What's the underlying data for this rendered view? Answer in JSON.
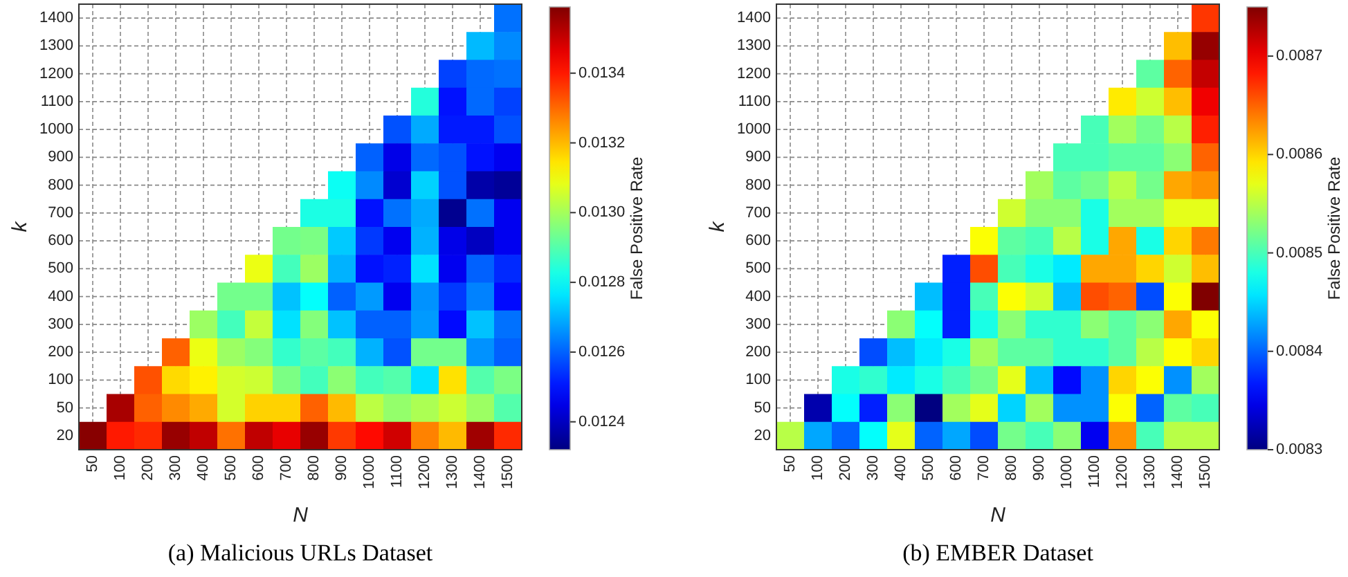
{
  "chart_data": [
    {
      "type": "heatmap",
      "title": "(a)  Malicious URLs Dataset",
      "xlabel": "N",
      "ylabel": "k",
      "clabel": "False Positive Rate",
      "grid": true,
      "categories": [
        "50",
        "100",
        "200",
        "300",
        "400",
        "500",
        "600",
        "700",
        "800",
        "900",
        "1000",
        "1100",
        "1200",
        "1300",
        "1400",
        "1500"
      ],
      "y_categories": [
        "1400",
        "1300",
        "1200",
        "1100",
        "1000",
        "900",
        "800",
        "700",
        "600",
        "500",
        "400",
        "300",
        "200",
        "100",
        "50",
        "20"
      ],
      "clim": [
        0.01232,
        0.01359
      ],
      "cticks": [
        0.0124,
        0.0126,
        0.0128,
        {
          "value": 0.013,
          "label": "0.0130"
        },
        0.0132,
        0.0134
      ],
      "cells": [
        [
          null,
          null,
          null,
          null,
          null,
          null,
          null,
          null,
          null,
          null,
          null,
          null,
          null,
          null,
          null,
          0.01262
        ],
        [
          null,
          null,
          null,
          null,
          null,
          null,
          null,
          null,
          null,
          null,
          null,
          null,
          null,
          null,
          0.01271,
          0.01265
        ],
        [
          null,
          null,
          null,
          null,
          null,
          null,
          null,
          null,
          null,
          null,
          null,
          null,
          null,
          0.01256,
          0.01261,
          0.01262
        ],
        [
          null,
          null,
          null,
          null,
          null,
          null,
          null,
          null,
          null,
          null,
          null,
          null,
          0.01284,
          0.0125,
          0.01261,
          0.01256
        ],
        [
          null,
          null,
          null,
          null,
          null,
          null,
          null,
          null,
          null,
          null,
          null,
          0.01258,
          0.01269,
          0.01251,
          0.01251,
          0.01258
        ],
        [
          null,
          null,
          null,
          null,
          null,
          null,
          null,
          null,
          null,
          null,
          0.0126,
          0.01245,
          0.01261,
          0.01258,
          0.0125,
          0.01246
        ],
        [
          null,
          null,
          null,
          null,
          null,
          null,
          null,
          null,
          null,
          0.01281,
          0.01265,
          0.01242,
          0.01274,
          0.01258,
          0.01237,
          0.01235
        ],
        [
          null,
          null,
          null,
          null,
          null,
          null,
          null,
          null,
          0.01283,
          0.01283,
          0.0125,
          0.01262,
          0.01269,
          0.01234,
          0.01262,
          0.01246
        ],
        [
          null,
          null,
          null,
          null,
          null,
          null,
          null,
          0.01294,
          0.01295,
          0.01273,
          0.01255,
          0.01246,
          0.0127,
          0.01245,
          0.0124,
          0.01246
        ],
        [
          null,
          null,
          null,
          null,
          null,
          null,
          0.01309,
          0.01288,
          0.01299,
          0.0127,
          0.0125,
          0.01252,
          0.01276,
          0.01246,
          0.0126,
          0.01253
        ],
        [
          null,
          null,
          null,
          null,
          null,
          0.01294,
          0.01294,
          0.01272,
          0.0128,
          0.0126,
          0.01267,
          0.01246,
          0.01266,
          0.01255,
          0.01264,
          0.01249
        ],
        [
          null,
          null,
          null,
          null,
          0.01299,
          0.01288,
          0.01304,
          0.01276,
          0.01296,
          0.01272,
          0.0126,
          0.0126,
          0.01267,
          0.01249,
          0.01272,
          0.01262
        ],
        [
          null,
          null,
          null,
          0.01331,
          0.01309,
          0.01299,
          0.01296,
          0.01286,
          0.01291,
          0.01288,
          0.0127,
          0.01258,
          0.01294,
          0.01294,
          0.01266,
          0.0126
        ],
        [
          null,
          null,
          0.01333,
          0.01316,
          0.01313,
          0.01306,
          0.01305,
          0.01295,
          0.01288,
          0.01297,
          0.01288,
          0.0129,
          0.01276,
          0.01315,
          0.0129,
          0.01295
        ],
        [
          null,
          0.01354,
          0.01331,
          0.01326,
          0.01322,
          0.01306,
          0.01317,
          0.01317,
          0.01331,
          0.0132,
          0.01303,
          0.01298,
          0.01301,
          0.01305,
          0.01299,
          0.0129
        ],
        [
          0.01358,
          0.0134,
          0.01338,
          0.01356,
          0.01351,
          0.01329,
          0.01351,
          0.01346,
          0.01356,
          0.01336,
          0.01342,
          0.01349,
          0.01327,
          0.0132,
          0.01355,
          0.01338
        ]
      ]
    },
    {
      "type": "heatmap",
      "title": "(b)  EMBER Dataset",
      "xlabel": "N",
      "ylabel": "k",
      "clabel": "False Positive Rate",
      "grid": true,
      "categories": [
        "50",
        "100",
        "200",
        "300",
        "400",
        "500",
        "600",
        "700",
        "800",
        "900",
        "1000",
        "1100",
        "1200",
        "1300",
        "1400",
        "1500"
      ],
      "y_categories": [
        "1400",
        "1300",
        "1200",
        "1100",
        "1000",
        "900",
        "800",
        "700",
        "600",
        "500",
        "400",
        "300",
        "200",
        "100",
        "50",
        "20"
      ],
      "clim": [
        0.0083,
        0.00875
      ],
      "cticks": [
        0.0083,
        0.0084,
        0.0085,
        0.0086,
        0.0087
      ],
      "cells": [
        [
          null,
          null,
          null,
          null,
          null,
          null,
          null,
          null,
          null,
          null,
          null,
          null,
          null,
          null,
          null,
          0.00867
        ],
        [
          null,
          null,
          null,
          null,
          null,
          null,
          null,
          null,
          null,
          null,
          null,
          null,
          null,
          null,
          0.00861,
          0.00874
        ],
        [
          null,
          null,
          null,
          null,
          null,
          null,
          null,
          null,
          null,
          null,
          null,
          null,
          null,
          0.00851,
          0.00865,
          0.00872
        ],
        [
          null,
          null,
          null,
          null,
          null,
          null,
          null,
          null,
          null,
          null,
          null,
          null,
          0.00859,
          0.00856,
          0.00861,
          0.0087
        ],
        [
          null,
          null,
          null,
          null,
          null,
          null,
          null,
          null,
          null,
          null,
          null,
          0.0085,
          0.00854,
          0.00852,
          0.00855,
          0.00868
        ],
        [
          null,
          null,
          null,
          null,
          null,
          null,
          null,
          null,
          null,
          null,
          0.0085,
          0.0085,
          0.00851,
          0.00851,
          0.00853,
          0.00865
        ],
        [
          null,
          null,
          null,
          null,
          null,
          null,
          null,
          null,
          null,
          0.00854,
          0.00851,
          0.00852,
          0.00855,
          0.00852,
          0.00862,
          0.00863
        ],
        [
          null,
          null,
          null,
          null,
          null,
          null,
          null,
          null,
          0.00856,
          0.00853,
          0.00853,
          0.00848,
          0.00854,
          0.00854,
          0.00857,
          0.00857
        ],
        [
          null,
          null,
          null,
          null,
          null,
          null,
          null,
          0.00858,
          0.00851,
          0.0085,
          0.00855,
          0.00848,
          0.00862,
          0.00848,
          0.0086,
          0.00864
        ],
        [
          null,
          null,
          null,
          null,
          null,
          null,
          0.00837,
          0.00866,
          0.0085,
          0.00848,
          0.00846,
          0.00862,
          0.00862,
          0.0086,
          0.00856,
          0.00861
        ],
        [
          null,
          null,
          null,
          null,
          null,
          0.00844,
          0.00837,
          0.0085,
          0.00858,
          0.00856,
          0.00844,
          0.00866,
          0.00865,
          0.00839,
          0.00858,
          0.00875
        ],
        [
          null,
          null,
          null,
          null,
          0.00853,
          0.00847,
          0.00837,
          0.00848,
          0.00853,
          0.00849,
          0.00849,
          0.00853,
          0.00851,
          0.00853,
          0.00862,
          0.00858
        ],
        [
          null,
          null,
          null,
          0.00839,
          0.00844,
          0.00846,
          0.00848,
          0.00854,
          0.00851,
          0.00851,
          0.00849,
          0.00849,
          0.00851,
          0.00855,
          0.00858,
          0.0086
        ],
        [
          null,
          null,
          0.00848,
          0.00849,
          0.00846,
          0.00848,
          0.0085,
          0.00852,
          0.00857,
          0.00844,
          0.00836,
          0.00842,
          0.0086,
          0.00858,
          0.00842,
          0.00854
        ],
        [
          null,
          0.00832,
          0.00847,
          0.00837,
          0.00853,
          0.0083,
          0.00854,
          0.00857,
          0.00845,
          0.00854,
          0.00842,
          0.00842,
          0.00858,
          0.0084,
          0.00851,
          0.0085
        ],
        [
          0.00855,
          0.00843,
          0.0084,
          0.00847,
          0.00857,
          0.0084,
          0.00843,
          0.00839,
          0.00852,
          0.0085,
          0.00853,
          0.00835,
          0.00863,
          0.0085,
          0.00855,
          0.00855
        ]
      ]
    }
  ]
}
